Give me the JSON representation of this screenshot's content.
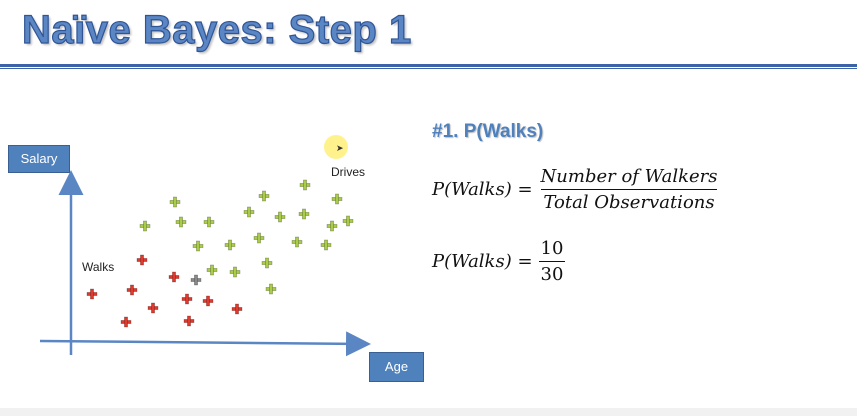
{
  "title": "Naïve Bayes: Step 1",
  "plot": {
    "y_axis_label": "Salary",
    "x_axis_label": "Age",
    "walks_label": "Walks",
    "drives_label": "Drives",
    "colors": {
      "walks": "#e03a2f",
      "drives": "#a9cc4a",
      "new_point": "#8a8a8a",
      "axis": "#5b86c4"
    }
  },
  "step": {
    "heading": "#1. P(Walks)",
    "formula1": {
      "lhs": "P(Walks) =",
      "numerator": "Number of Walkers",
      "denominator": "Total Observations"
    },
    "formula2": {
      "lhs": "P(Walks) =",
      "numerator": "10",
      "denominator": "30"
    }
  }
}
